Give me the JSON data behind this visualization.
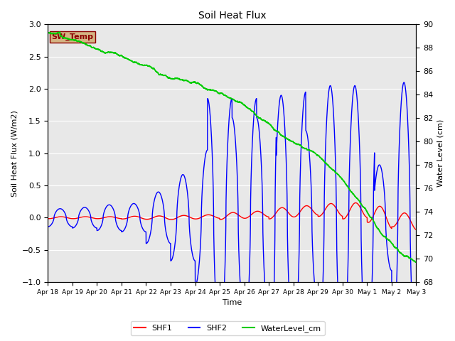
{
  "title": "Soil Heat Flux",
  "ylabel_left": "Soil Heat Flux (W/m2)",
  "ylabel_right": "Water Level (cm)",
  "xlabel": "Time",
  "ylim_left": [
    -1.0,
    3.0
  ],
  "ylim_right": [
    68,
    90
  ],
  "bg_color": "#e8e8e8",
  "fig_bg": "#ffffff",
  "sw_temp_label": "SW_Temp",
  "sw_temp_box_color": "#d4b483",
  "sw_temp_text_color": "#8b0000",
  "legend_entries": [
    "SHF1",
    "SHF2",
    "WaterLevel_cm"
  ],
  "legend_colors": [
    "#ff0000",
    "#0000ff",
    "#00cc00"
  ],
  "xtick_labels": [
    "Apr 18",
    "Apr 19",
    "Apr 20",
    "Apr 21",
    "Apr 22",
    "Apr 23",
    "Apr 24",
    "Apr 25",
    "Apr 26",
    "Apr 27",
    "Apr 28",
    "Apr 29",
    "Apr 30",
    "May 1",
    "May 2",
    "May 3"
  ],
  "shf1_color": "#ff0000",
  "shf2_color": "#0000ff",
  "wl_color": "#00cc00"
}
